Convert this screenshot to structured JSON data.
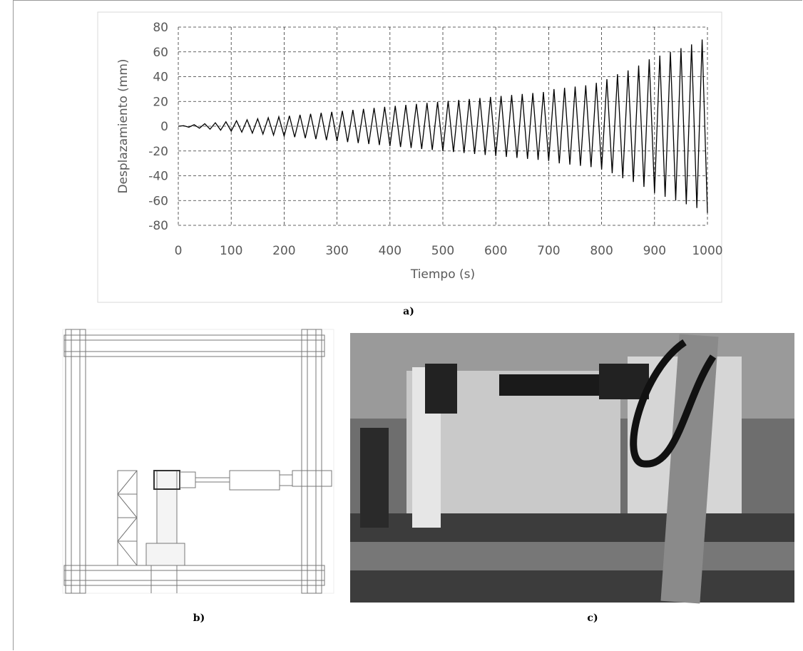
{
  "chart_data": {
    "type": "line",
    "xlabel": "Tiempo (s)",
    "ylabel": "Desplazamiento (mm)",
    "x": [
      0,
      10,
      20,
      30,
      40,
      50,
      60,
      70,
      80,
      90,
      100,
      110,
      120,
      130,
      140,
      150,
      160,
      170,
      180,
      190,
      200,
      210,
      220,
      230,
      240,
      250,
      260,
      270,
      280,
      290,
      300,
      310,
      320,
      330,
      340,
      350,
      360,
      370,
      380,
      390,
      400,
      410,
      420,
      430,
      440,
      450,
      460,
      470,
      480,
      490,
      500,
      510,
      520,
      530,
      540,
      550,
      560,
      570,
      580,
      590,
      600,
      610,
      620,
      630,
      640,
      650,
      660,
      670,
      680,
      690,
      700,
      710,
      720,
      730,
      740,
      750,
      760,
      770,
      780,
      790,
      800,
      810,
      820,
      830,
      840,
      850,
      860,
      870,
      880,
      890,
      900,
      910,
      920,
      930,
      940,
      950,
      960,
      970,
      980,
      990,
      1000
    ],
    "series": [
      {
        "color": "#000000",
        "values": [
          0,
          0.4,
          -0.8,
          1.2,
          -1.6,
          2,
          -2.4,
          2.8,
          -3.2,
          3.6,
          -4,
          4.4,
          -4.8,
          5.2,
          -5.6,
          6,
          -6.4,
          6.8,
          -7.2,
          7.6,
          -8,
          8.4,
          -8.8,
          9.2,
          -9.6,
          10,
          -10.4,
          10.8,
          -11.2,
          11.6,
          -12,
          12.4,
          -12.8,
          13.2,
          -13.6,
          14,
          -14.4,
          14.8,
          -15.2,
          15.6,
          -16,
          16.4,
          -16.8,
          17.2,
          -17.6,
          18,
          -18.4,
          18.8,
          -19.2,
          19.6,
          -20,
          20.4,
          -20.8,
          21.2,
          -21.6,
          22,
          -22.4,
          22.8,
          -23.2,
          23.6,
          -24,
          24.4,
          -24.8,
          25.2,
          -25.6,
          26,
          -26.4,
          26.8,
          -27.2,
          27.6,
          -28,
          30,
          -30,
          31,
          -31,
          32,
          -32,
          33,
          -33,
          35,
          -35,
          38,
          -38,
          42,
          -42,
          45,
          -45,
          49,
          -49,
          54,
          -54,
          57,
          -57,
          60,
          -60,
          63,
          -63,
          66,
          -66,
          70,
          -70
        ]
      }
    ],
    "xlim": [
      0,
      1000
    ],
    "xticks": [
      0,
      100,
      200,
      300,
      400,
      500,
      600,
      700,
      800,
      900,
      1000
    ],
    "ylim": [
      -80,
      80
    ],
    "yticks": [
      -80,
      -60,
      -40,
      -20,
      0,
      20,
      40,
      60,
      80
    ],
    "grid": true
  },
  "panels": {
    "a": "a)",
    "b": "b)",
    "c": "c)"
  }
}
